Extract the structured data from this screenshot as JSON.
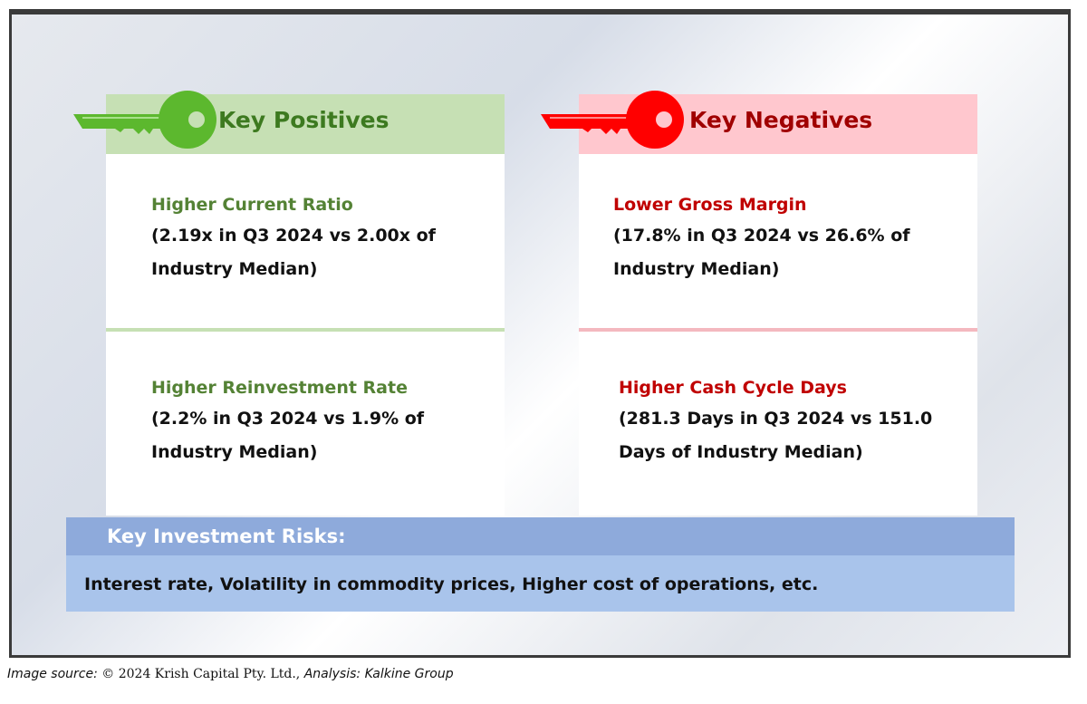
{
  "positives": {
    "header": "Key Positives",
    "items": [
      {
        "title": "Higher Current Ratio",
        "desc_line1": "(2.19x in Q3 2024 vs 2.00x of",
        "desc_line2": "Industry Median)"
      },
      {
        "title": "Higher Reinvestment Rate",
        "desc_line1": "(2.2% in Q3 2024 vs 1.9% of",
        "desc_line2": "Industry Median)"
      }
    ]
  },
  "negatives": {
    "header": "Key Negatives",
    "items": [
      {
        "title": "Lower Gross Margin",
        "desc_line1": "(17.8% in Q3 2024 vs 26.6% of",
        "desc_line2": "Industry Median)"
      },
      {
        "title": "Higher Cash Cycle Days",
        "desc_line1": "(281.3 Days in Q3 2024 vs 151.0",
        "desc_line2": "Days of Industry Median)"
      }
    ]
  },
  "risks": {
    "title": "Key Investment Risks:",
    "text": "Interest rate, Volatility in commodity prices, Higher cost of operations, etc."
  },
  "footer": {
    "label": "Image source: ",
    "copyright": "© 2024 Krish Capital Pty. Ltd.,",
    "analysis": " Analysis: Kalkine Group"
  },
  "colors": {
    "positive_key": "#5cb82e",
    "negative_key": "#ff0000",
    "positive_band": "#c6e0b4",
    "negative_band": "#ffc7ce",
    "risk_header": "#8eaadb",
    "risk_body": "#a9c4eb"
  },
  "icons": [
    "key-icon-green",
    "key-icon-red"
  ]
}
